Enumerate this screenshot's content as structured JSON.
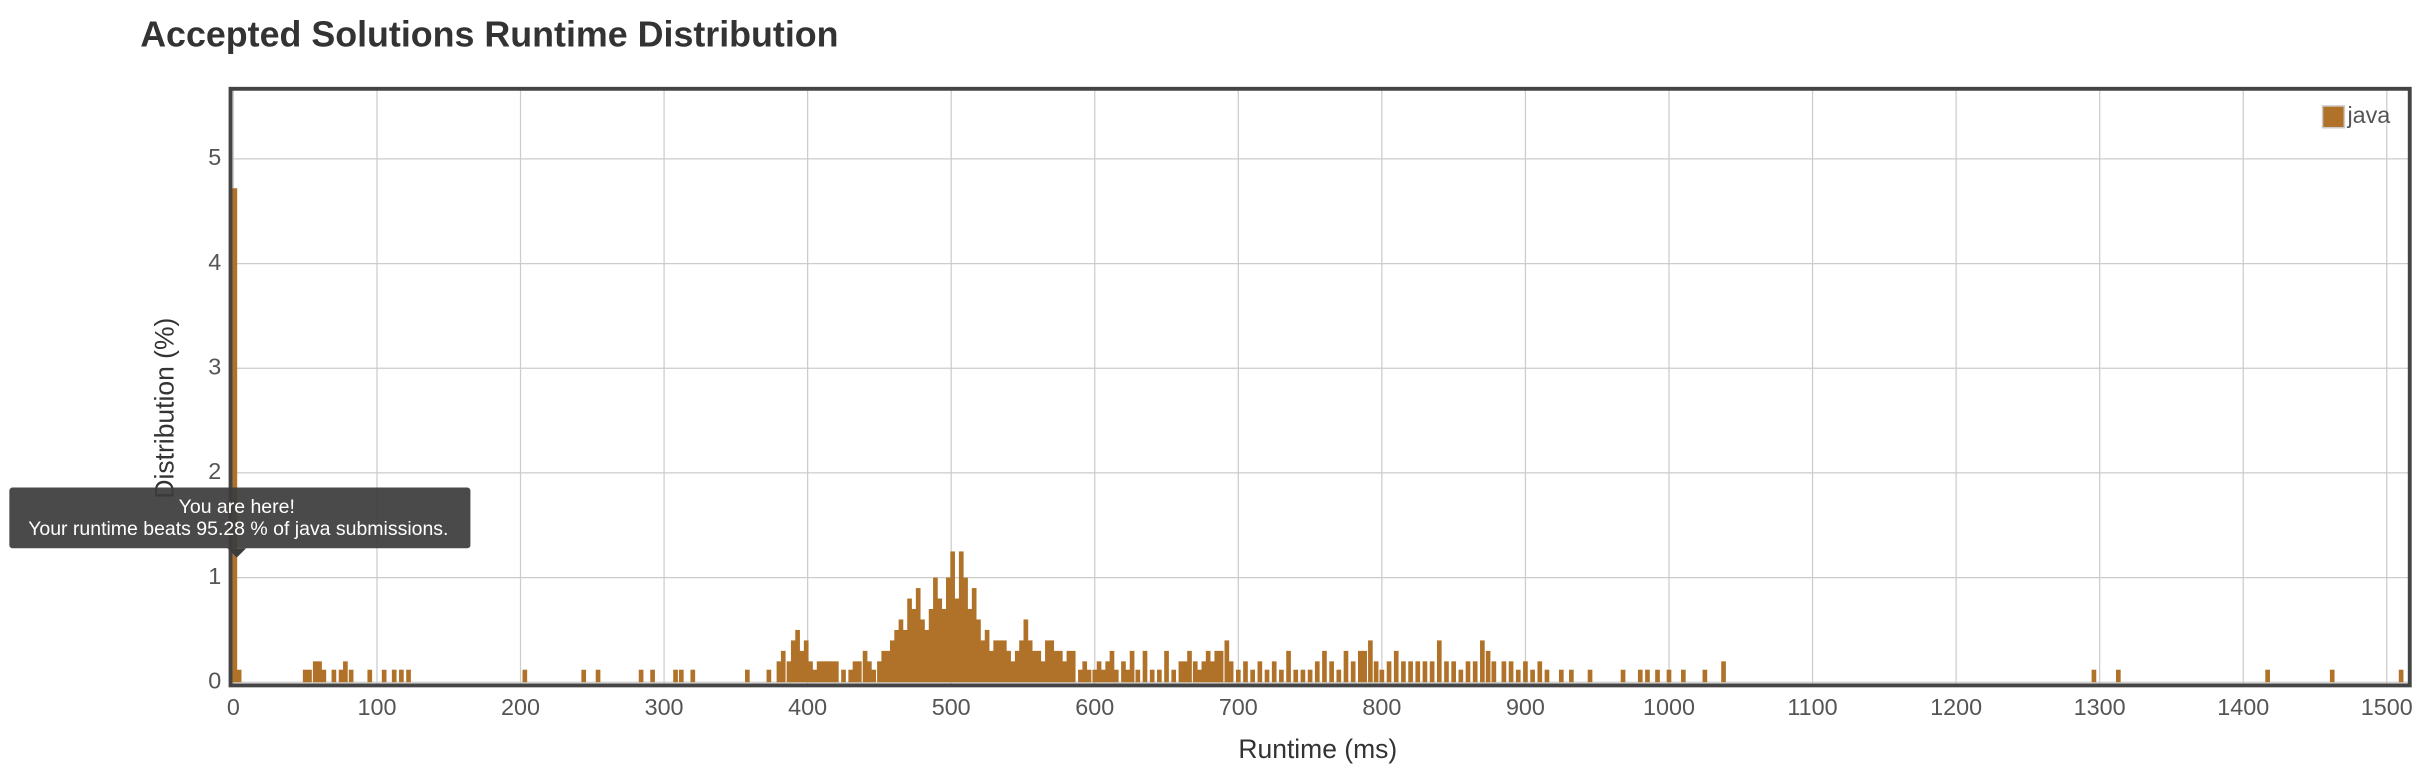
{
  "chart_data": {
    "type": "bar",
    "title": "Accepted Solutions Runtime Distribution",
    "x_label": "Runtime (ms)",
    "y_label": "Distribution (%)",
    "annotation": [
      "You are here!",
      "Your runtime beats 95.28 % of java submissions."
    ],
    "xlim": [
      -2,
      1516
    ],
    "ylim": [
      0,
      5.67
    ],
    "xticks": [
      0,
      100,
      200,
      300,
      400,
      500,
      600,
      700,
      800,
      900,
      1000,
      1100,
      1200,
      1300,
      1400,
      1500
    ],
    "yticks": [
      0,
      1,
      2,
      3,
      4,
      5
    ],
    "grid": true,
    "legend": "top-right",
    "series": [
      {
        "name": "java",
        "color": "#b07228",
        "x": [
          1,
          4,
          50,
          53,
          57,
          60,
          63,
          70,
          75,
          78,
          82,
          95,
          105,
          112,
          117,
          122,
          203,
          244,
          254,
          284,
          292,
          308,
          312,
          320,
          358,
          373,
          380,
          383,
          387,
          390,
          393,
          396,
          399,
          402,
          405,
          408,
          411,
          414,
          417,
          420,
          425,
          430,
          433,
          436,
          440,
          443,
          446,
          450,
          453,
          456,
          459,
          462,
          465,
          468,
          471,
          474,
          477,
          480,
          483,
          486,
          489,
          492,
          495,
          498,
          501,
          504,
          507,
          510,
          513,
          516,
          519,
          522,
          525,
          528,
          531,
          534,
          537,
          540,
          543,
          546,
          549,
          552,
          555,
          558,
          561,
          564,
          567,
          570,
          573,
          576,
          579,
          582,
          585,
          590,
          593,
          596,
          600,
          603,
          606,
          609,
          612,
          615,
          620,
          623,
          626,
          630,
          635,
          640,
          645,
          650,
          655,
          660,
          663,
          666,
          670,
          673,
          676,
          679,
          682,
          685,
          688,
          692,
          695,
          700,
          705,
          710,
          715,
          720,
          725,
          730,
          735,
          740,
          745,
          750,
          755,
          760,
          765,
          770,
          775,
          780,
          785,
          788,
          792,
          796,
          800,
          805,
          810,
          815,
          820,
          825,
          830,
          835,
          840,
          845,
          850,
          855,
          860,
          865,
          870,
          874,
          878,
          885,
          890,
          895,
          900,
          905,
          910,
          915,
          925,
          932,
          945,
          968,
          980,
          985,
          992,
          1000,
          1010,
          1025,
          1038,
          1296,
          1313,
          1417,
          1462,
          1510
        ],
        "values": [
          4.72,
          0.12,
          0.12,
          0.12,
          0.2,
          0.2,
          0.12,
          0.12,
          0.12,
          0.2,
          0.12,
          0.12,
          0.12,
          0.12,
          0.12,
          0.12,
          0.12,
          0.12,
          0.12,
          0.12,
          0.12,
          0.12,
          0.12,
          0.12,
          0.12,
          0.12,
          0.2,
          0.3,
          0.2,
          0.4,
          0.5,
          0.3,
          0.4,
          0.2,
          0.12,
          0.2,
          0.2,
          0.2,
          0.2,
          0.2,
          0.12,
          0.12,
          0.2,
          0.2,
          0.3,
          0.2,
          0.12,
          0.2,
          0.3,
          0.3,
          0.4,
          0.5,
          0.6,
          0.5,
          0.8,
          0.7,
          0.9,
          0.6,
          0.5,
          0.7,
          1.0,
          0.8,
          0.7,
          1.0,
          1.25,
          0.8,
          1.25,
          1.0,
          0.7,
          0.9,
          0.6,
          0.4,
          0.5,
          0.3,
          0.4,
          0.4,
          0.4,
          0.3,
          0.2,
          0.3,
          0.4,
          0.6,
          0.4,
          0.3,
          0.3,
          0.2,
          0.4,
          0.4,
          0.3,
          0.3,
          0.2,
          0.3,
          0.3,
          0.12,
          0.2,
          0.12,
          0.12,
          0.2,
          0.12,
          0.2,
          0.3,
          0.12,
          0.2,
          0.12,
          0.3,
          0.12,
          0.3,
          0.12,
          0.12,
          0.3,
          0.12,
          0.2,
          0.2,
          0.3,
          0.2,
          0.12,
          0.2,
          0.3,
          0.2,
          0.3,
          0.3,
          0.4,
          0.2,
          0.12,
          0.2,
          0.12,
          0.2,
          0.12,
          0.2,
          0.12,
          0.3,
          0.12,
          0.12,
          0.12,
          0.2,
          0.3,
          0.2,
          0.12,
          0.3,
          0.2,
          0.3,
          0.3,
          0.4,
          0.2,
          0.12,
          0.2,
          0.3,
          0.2,
          0.2,
          0.2,
          0.2,
          0.2,
          0.4,
          0.2,
          0.2,
          0.12,
          0.2,
          0.2,
          0.4,
          0.3,
          0.2,
          0.2,
          0.2,
          0.12,
          0.2,
          0.12,
          0.2,
          0.12,
          0.12,
          0.12,
          0.12,
          0.12,
          0.12,
          0.12,
          0.12,
          0.12,
          0.12,
          0.12,
          0.2,
          0.12,
          0.12,
          0.12,
          0.12,
          0.12
        ]
      }
    ]
  }
}
